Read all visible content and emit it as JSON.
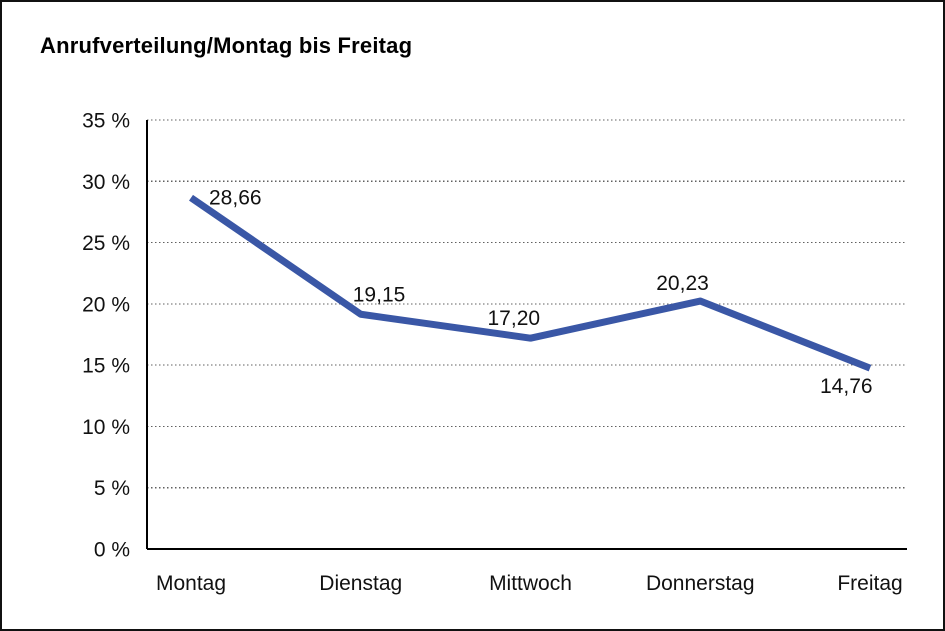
{
  "chart_data": {
    "type": "line",
    "title": "Anrufverteilung/Montag bis Freitag",
    "categories": [
      "Montag",
      "Dienstag",
      "Mittwoch",
      "Donnerstag",
      "Freitag"
    ],
    "values": [
      28.66,
      19.15,
      17.2,
      20.23,
      14.76
    ],
    "value_labels": [
      "28,66",
      "19,15",
      "17,20",
      "20,23",
      "14,76"
    ],
    "y_tick_values": [
      0,
      5,
      10,
      15,
      20,
      25,
      30,
      35
    ],
    "y_tick_labels": [
      "0 %",
      "5 %",
      "10 %",
      "15 %",
      "20 %",
      "25 %",
      "30 %",
      "35 %"
    ],
    "ylim": [
      0,
      35
    ],
    "xlabel": "",
    "ylabel": "",
    "legend": "none",
    "grid": "horizontal dotted",
    "line_color": "#3A57A6",
    "axis_color": "#000000",
    "grid_color": "#606060",
    "label_color": "#111111",
    "background": "#FFFFFF"
  }
}
